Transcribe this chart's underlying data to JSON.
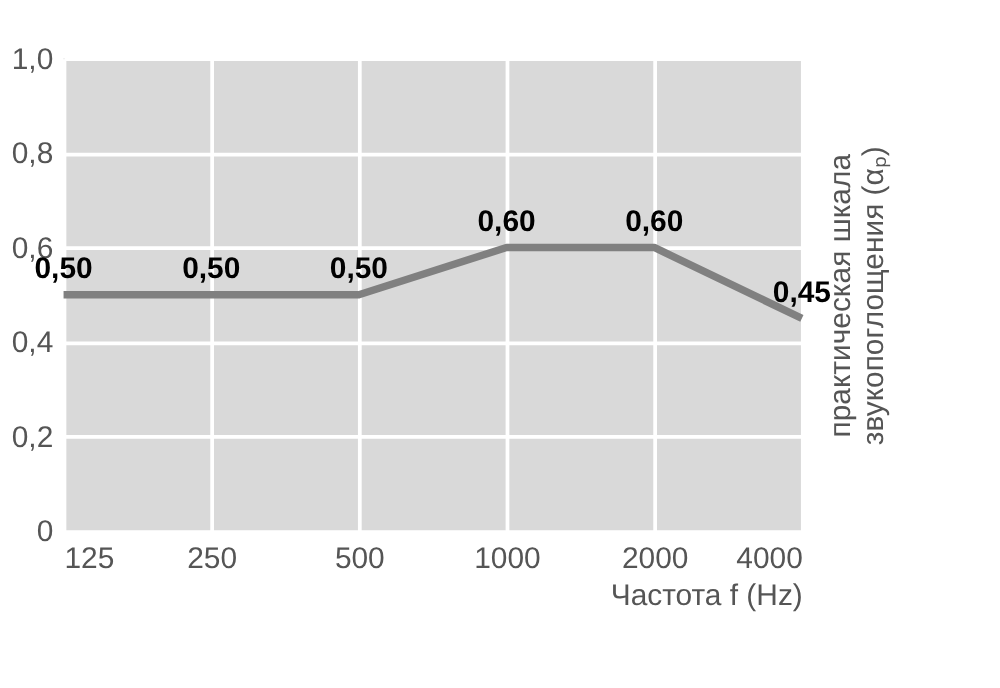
{
  "chart_data": {
    "type": "line",
    "categories": [
      "125",
      "250",
      "500",
      "1000",
      "2000",
      "4000"
    ],
    "series": [
      {
        "color": "#808080",
        "values": [
          0.5,
          0.5,
          0.5,
          0.6,
          0.6,
          0.45
        ],
        "value_labels": [
          "0,50",
          "0,50",
          "0,50",
          "0,60",
          "0,60",
          "0,45"
        ]
      }
    ],
    "ylim": [
      0,
      1
    ],
    "yticks": [
      0,
      {
        "value": 0.2,
        "label": "0,2"
      },
      {
        "value": 0.4,
        "label": "0,4"
      },
      {
        "value": 0.6,
        "label": "0,6"
      },
      {
        "value": 0.8,
        "label": "0,8"
      },
      {
        "value": 1.0,
        "label": "1,0"
      }
    ],
    "xlabel": "Частота f (Hz)",
    "ylabel": "практическая шкала звукопоглощения (αₚ)",
    "grid": true,
    "marker": "none",
    "line_style": "solid"
  }
}
